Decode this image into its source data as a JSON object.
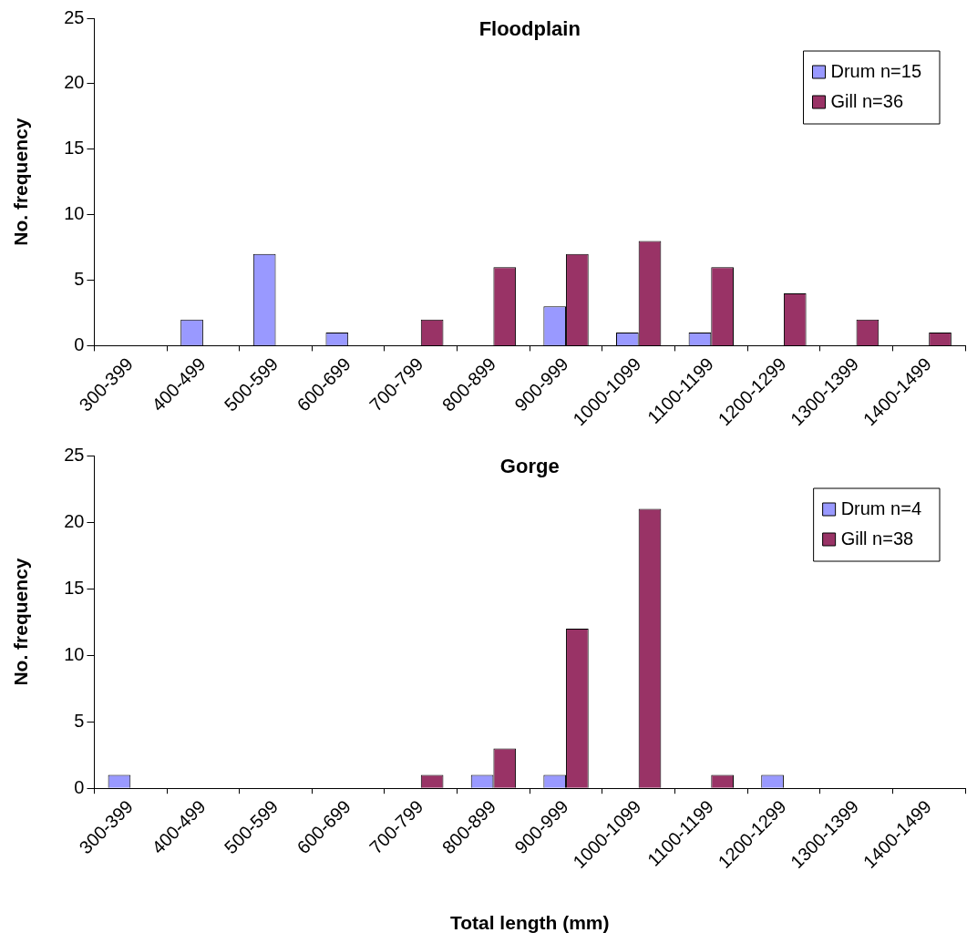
{
  "chart_data": [
    {
      "type": "bar",
      "title": "Floodplain",
      "ylabel": "No. frequency",
      "categories": [
        "300-399",
        "400-499",
        "500-599",
        "600-699",
        "700-799",
        "800-899",
        "900-999",
        "1000-1099",
        "1100-1199",
        "1200-1299",
        "1300-1399",
        "1400-1499"
      ],
      "series": [
        {
          "name": "Drum n=15",
          "color": "#9999ff",
          "values": [
            0,
            2,
            7,
            1,
            0,
            0,
            3,
            1,
            1,
            0,
            0,
            0
          ]
        },
        {
          "name": "Gill n=36",
          "color": "#993366",
          "values": [
            0,
            0,
            0,
            0,
            2,
            6,
            7,
            8,
            6,
            4,
            2,
            1
          ]
        }
      ],
      "ylim": [
        0,
        25
      ],
      "yticks": [
        0,
        5,
        10,
        15,
        20,
        25
      ],
      "grid": false,
      "legend": "top right"
    },
    {
      "type": "bar",
      "title": "Gorge",
      "ylabel": "No. frequency",
      "xlabel": "Total length (mm)",
      "categories": [
        "300-399",
        "400-499",
        "500-599",
        "600-699",
        "700-799",
        "800-899",
        "900-999",
        "1000-1099",
        "1100-1199",
        "1200-1299",
        "1300-1399",
        "1400-1499"
      ],
      "series": [
        {
          "name": "Drum n=4",
          "color": "#9999ff",
          "values": [
            1,
            0,
            0,
            0,
            0,
            1,
            1,
            0,
            0,
            1,
            0,
            0
          ]
        },
        {
          "name": "Gill n=38",
          "color": "#993366",
          "values": [
            0,
            0,
            0,
            0,
            1,
            3,
            12,
            21,
            1,
            0,
            0,
            0
          ]
        }
      ],
      "ylim": [
        0,
        25
      ],
      "yticks": [
        0,
        5,
        10,
        15,
        20,
        25
      ],
      "grid": false,
      "legend": "top right"
    }
  ]
}
